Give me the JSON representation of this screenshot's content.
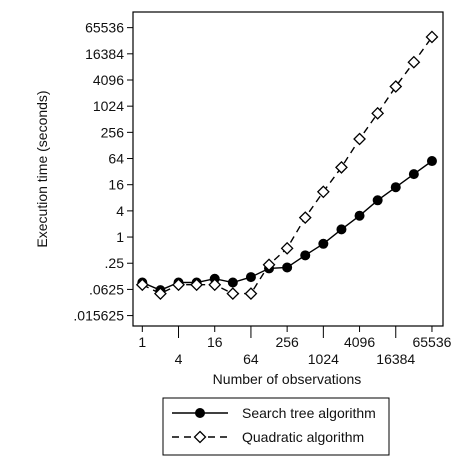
{
  "chart_data": {
    "type": "line",
    "x_scale": "log2",
    "y_scale": "log2",
    "xlabel": "Number of observations",
    "ylabel": "Execution time (seconds)",
    "x_ticks": [
      {
        "value": 1,
        "label": "1",
        "row": "upper"
      },
      {
        "value": 4,
        "label": "4",
        "row": "lower"
      },
      {
        "value": 16,
        "label": "16",
        "row": "upper"
      },
      {
        "value": 64,
        "label": "64",
        "row": "lower"
      },
      {
        "value": 256,
        "label": "256",
        "row": "upper"
      },
      {
        "value": 1024,
        "label": "1024",
        "row": "lower"
      },
      {
        "value": 4096,
        "label": "4096",
        "row": "upper"
      },
      {
        "value": 16384,
        "label": "16384",
        "row": "lower"
      },
      {
        "value": 65536,
        "label": "65536",
        "row": "upper"
      }
    ],
    "y_ticks": [
      {
        "value": 0.015625,
        "label": ".015625"
      },
      {
        "value": 0.0625,
        "label": ".0625"
      },
      {
        "value": 0.25,
        "label": ".25"
      },
      {
        "value": 1,
        "label": "1"
      },
      {
        "value": 4,
        "label": "4"
      },
      {
        "value": 16,
        "label": "16"
      },
      {
        "value": 64,
        "label": "64"
      },
      {
        "value": 256,
        "label": "256"
      },
      {
        "value": 1024,
        "label": "1024"
      },
      {
        "value": 4096,
        "label": "4096"
      },
      {
        "value": 16384,
        "label": "16384"
      },
      {
        "value": 65536,
        "label": "65536"
      }
    ],
    "xlim": [
      0.7,
      100000
    ],
    "ylim": [
      0.009,
      150000
    ],
    "legend_position": "bottom",
    "series": [
      {
        "name": "Search tree algorithm",
        "marker": "filled-circle",
        "line_style": "solid",
        "color": "#000000",
        "x": [
          1,
          2,
          4,
          8,
          16,
          32,
          64,
          128,
          256,
          512,
          1024,
          2048,
          4096,
          8192,
          16384,
          32768,
          65536
        ],
        "y": [
          0.09,
          0.06,
          0.09,
          0.09,
          0.11,
          0.09,
          0.12,
          0.19,
          0.2,
          0.38,
          0.7,
          1.5,
          3.1,
          7,
          14,
          28,
          56
        ]
      },
      {
        "name": "Quadratic algorithm",
        "marker": "open-diamond",
        "line_style": "dashed",
        "color": "#000000",
        "x": [
          1,
          2,
          4,
          8,
          16,
          32,
          64,
          128,
          256,
          512,
          1024,
          2048,
          4096,
          8192,
          16384,
          32768,
          65536
        ],
        "y": [
          0.08,
          0.05,
          0.08,
          0.08,
          0.08,
          0.05,
          0.05,
          0.23,
          0.55,
          2.8,
          11,
          40,
          180,
          700,
          2900,
          10500,
          40000
        ]
      }
    ]
  }
}
